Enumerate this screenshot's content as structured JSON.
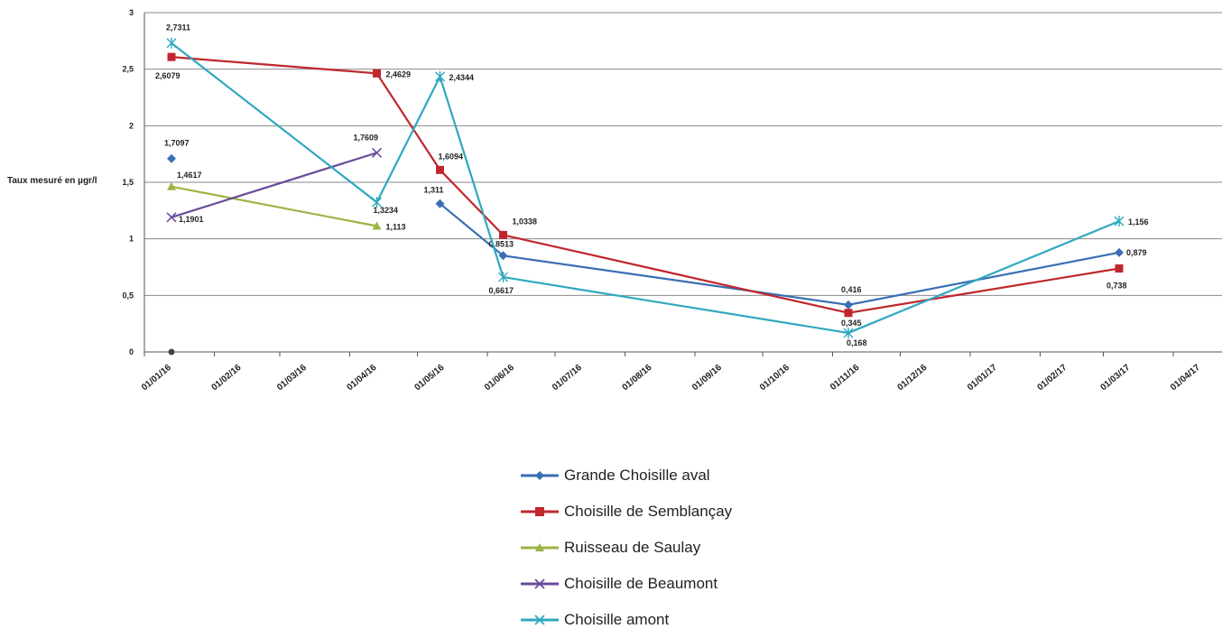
{
  "chart_data": {
    "type": "line",
    "title": "",
    "xlabel": "",
    "ylabel": "Taux mesuré en µgr/l",
    "ylim": [
      0,
      3
    ],
    "yticks": [
      "0",
      "0,5",
      "1",
      "1,5",
      "2",
      "2,5",
      "3"
    ],
    "xticks": [
      "01/01/16",
      "01/02/16",
      "01/03/16",
      "01/04/16",
      "01/05/16",
      "01/06/16",
      "01/07/16",
      "01/08/16",
      "01/09/16",
      "01/10/16",
      "01/11/16",
      "01/12/16",
      "01/01/17",
      "01/02/17",
      "01/03/17",
      "01/04/17"
    ],
    "xlim": [
      "2016-01-01",
      "2017-04-01"
    ],
    "grid": true,
    "legend_position": "bottom",
    "series": [
      {
        "name": "Grande Choisille aval",
        "color": "#3a6fb5",
        "marker": "diamond",
        "segments": [
          [
            {
              "x": "2016-01-13",
              "y": 1.7097,
              "label": "1,7097"
            }
          ],
          [
            {
              "x": "2016-05-11",
              "y": 1.311,
              "label": "1,311"
            },
            {
              "x": "2016-06-08",
              "y": 0.8513,
              "label": "0,8513"
            },
            {
              "x": "2016-11-08",
              "y": 0.416,
              "label": "0,416"
            },
            {
              "x": "2017-03-08",
              "y": 0.879,
              "label": "0,879"
            }
          ]
        ]
      },
      {
        "name": "Choisille de Semblançay",
        "color": "#c0272d",
        "marker": "square",
        "segments": [
          [
            {
              "x": "2016-01-13",
              "y": 2.6079,
              "label": "2,6079"
            },
            {
              "x": "2016-04-13",
              "y": 2.4629,
              "label": "2,4629"
            },
            {
              "x": "2016-05-11",
              "y": 1.6094,
              "label": "1,6094"
            },
            {
              "x": "2016-06-08",
              "y": 1.0338,
              "label": "1,0338"
            },
            {
              "x": "2016-11-08",
              "y": 0.345,
              "label": "0,345"
            },
            {
              "x": "2017-03-08",
              "y": 0.738,
              "label": "0,738"
            }
          ]
        ]
      },
      {
        "name": "Ruisseau de Saulay",
        "color": "#9bb545",
        "marker": "triangle",
        "segments": [
          [
            {
              "x": "2016-01-13",
              "y": 1.4617,
              "label": "1,4617"
            },
            {
              "x": "2016-04-13",
              "y": 1.113,
              "label": "1,113"
            }
          ]
        ]
      },
      {
        "name": "Choisille de Beaumont",
        "color": "#6a4c9c",
        "marker": "x",
        "segments": [
          [
            {
              "x": "2016-01-13",
              "y": 1.1901,
              "label": "1,1901"
            },
            {
              "x": "2016-04-13",
              "y": 1.7609,
              "label": "1,7609"
            }
          ]
        ]
      },
      {
        "name": "Choisille amont",
        "color": "#2fa8c0",
        "marker": "star",
        "segments": [
          [
            {
              "x": "2016-01-13",
              "y": 2.7311,
              "label": "2,7311"
            },
            {
              "x": "2016-04-13",
              "y": 1.3234,
              "label": "1,3234"
            },
            {
              "x": "2016-05-11",
              "y": 2.4344,
              "label": "2,4344"
            },
            {
              "x": "2016-06-08",
              "y": 0.6617,
              "label": "0,6617"
            },
            {
              "x": "2016-11-08",
              "y": 0.168,
              "label": "0,168"
            },
            {
              "x": "2017-03-08",
              "y": 1.156,
              "label": "1,156"
            }
          ]
        ]
      }
    ],
    "extra_markers": [
      {
        "x": "2016-01-13",
        "y": 0,
        "color": "#444444"
      }
    ]
  }
}
